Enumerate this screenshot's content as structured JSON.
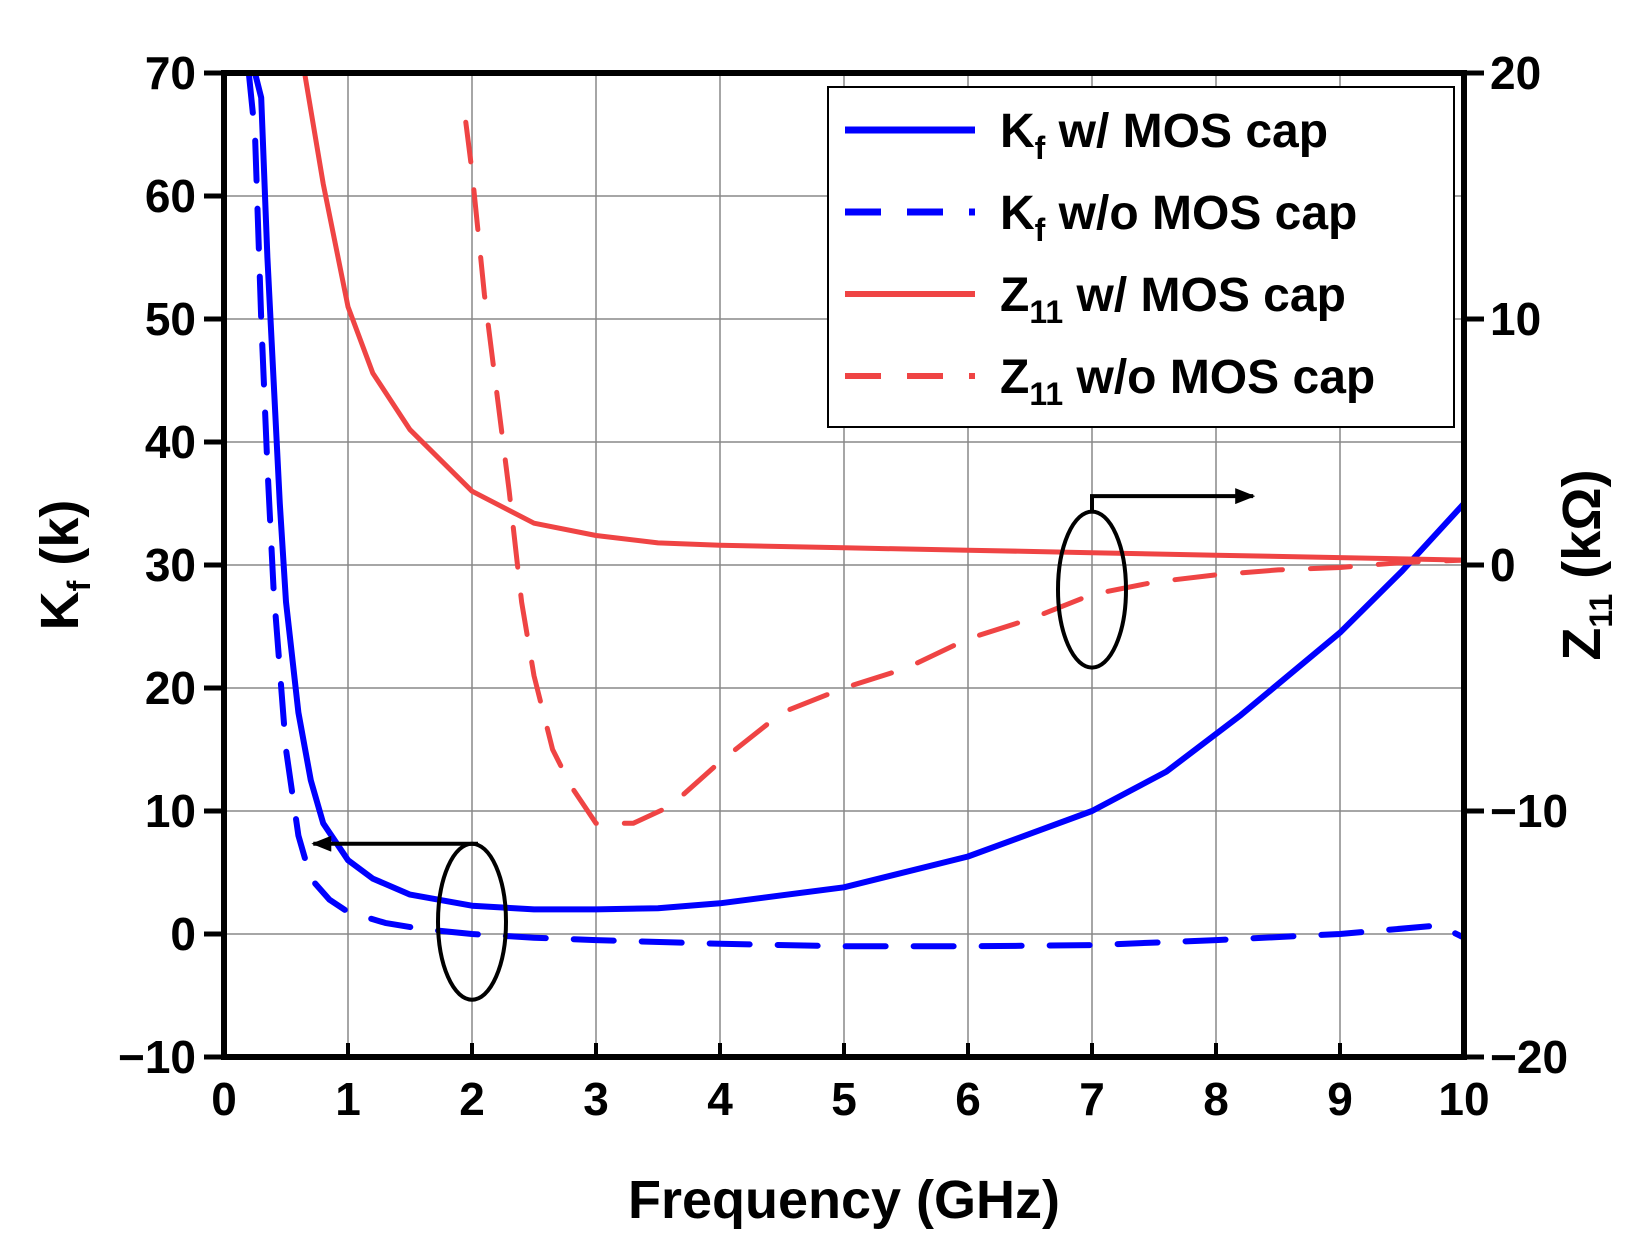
{
  "chart_data": {
    "type": "line",
    "xlabel": "Frequency (GHz)",
    "ylabel_left": {
      "main": "K",
      "sub": "f",
      "rest": " (k)"
    },
    "ylabel_right": {
      "main": "Z",
      "sub": "11",
      "rest": " (kΩ)"
    },
    "xlim": [
      0,
      10
    ],
    "ylim_left": [
      -10,
      70
    ],
    "ylim_right": [
      -20,
      20
    ],
    "x_ticks": [
      0,
      1,
      2,
      3,
      4,
      5,
      6,
      7,
      8,
      9,
      10
    ],
    "y_ticks_left": [
      -10,
      0,
      10,
      20,
      30,
      40,
      50,
      60,
      70
    ],
    "y_ticks_right": [
      -20,
      -10,
      0,
      10,
      20
    ],
    "grid": true,
    "legend_position": "top-right",
    "series": [
      {
        "name": "Kf w/ MOS cap",
        "legend": {
          "main": "K",
          "sub": "f",
          "rest": " w/ MOS cap"
        },
        "axis": "left",
        "color": "#0000ff",
        "dash": "solid",
        "x": [
          0.25,
          0.3,
          0.35,
          0.4,
          0.45,
          0.5,
          0.6,
          0.7,
          0.8,
          1.0,
          1.2,
          1.5,
          2.0,
          2.5,
          3.0,
          3.5,
          4.0,
          5.0,
          6.0,
          7.0,
          7.6,
          8.2,
          9.0,
          9.5,
          10.0
        ],
        "y": [
          70,
          68,
          55,
          45,
          35,
          27,
          18,
          12.5,
          9,
          6,
          4.5,
          3.2,
          2.3,
          2.0,
          2.0,
          2.1,
          2.5,
          3.8,
          6.3,
          10,
          13.2,
          17.8,
          24.5,
          29.5,
          35
        ]
      },
      {
        "name": "Kf w/o MOS cap",
        "legend": {
          "main": "K",
          "sub": "f",
          "rest": " w/o MOS cap"
        },
        "axis": "left",
        "color": "#0000ff",
        "dash": "dashed",
        "x": [
          0.2,
          0.25,
          0.3,
          0.35,
          0.4,
          0.5,
          0.6,
          0.7,
          0.85,
          1.0,
          1.3,
          1.6,
          2.0,
          2.5,
          3.0,
          4.0,
          5.0,
          6.0,
          7.0,
          8.0,
          9.0,
          9.8,
          10.0
        ],
        "y": [
          70,
          65,
          50,
          38,
          28,
          15,
          8,
          4.5,
          2.8,
          1.8,
          0.9,
          0.4,
          0.0,
          -0.3,
          -0.5,
          -0.8,
          -1.0,
          -1.0,
          -0.9,
          -0.5,
          0.0,
          0.7,
          -0.3
        ]
      },
      {
        "name": "Z11 w/ MOS cap",
        "legend": {
          "main": "Z",
          "sub": "11",
          "rest": " w/ MOS cap"
        },
        "axis": "right",
        "color": "#ef4444",
        "dash": "solid",
        "x": [
          0.65,
          0.8,
          1.0,
          1.2,
          1.5,
          2.0,
          2.5,
          3.0,
          3.5,
          4.0,
          5.0,
          6.0,
          7.0,
          8.0,
          9.0,
          10.0
        ],
        "y": [
          20,
          15.5,
          10.5,
          7.8,
          5.5,
          3.0,
          1.7,
          1.2,
          0.9,
          0.8,
          0.7,
          0.6,
          0.5,
          0.4,
          0.3,
          0.2
        ]
      },
      {
        "name": "Z11 w/o MOS cap",
        "legend": {
          "main": "Z",
          "sub": "11",
          "rest": " w/o MOS cap"
        },
        "axis": "right",
        "color": "#ef4444",
        "dash": "dashed",
        "x": [
          1.95,
          2.0,
          2.1,
          2.2,
          2.3,
          2.4,
          2.5,
          2.65,
          2.8,
          3.0,
          3.3,
          3.6,
          4.0,
          4.5,
          5.0,
          5.5,
          6.0,
          6.5,
          7.0,
          7.5,
          8.0,
          8.5,
          9.0,
          9.5,
          10.0
        ],
        "y": [
          18,
          16,
          11,
          7,
          3,
          -1.5,
          -4.5,
          -7.5,
          -9,
          -10.5,
          -10.5,
          -9.8,
          -8,
          -6,
          -5,
          -4.2,
          -3,
          -2.2,
          -1.2,
          -0.7,
          -0.4,
          -0.2,
          -0.1,
          0.1,
          0.2
        ]
      }
    ],
    "annotations": [
      {
        "type": "ellipse-arrow",
        "target_axis": "left",
        "arrow": "left",
        "cx_data": 2.0,
        "cy_data_left": 1.0
      },
      {
        "type": "ellipse-arrow",
        "target_axis": "right",
        "arrow": "right",
        "cx_data": 7.0,
        "cy_data_right": -1.0
      }
    ]
  }
}
